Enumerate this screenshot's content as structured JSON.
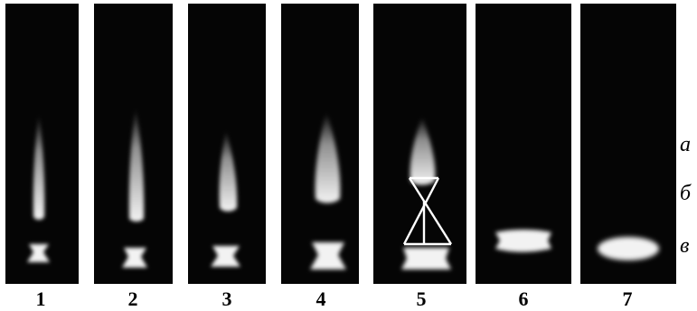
{
  "panels": [
    {
      "label": "1"
    },
    {
      "label": "2"
    },
    {
      "label": "3"
    },
    {
      "label": "4"
    },
    {
      "label": "5"
    },
    {
      "label": "6"
    },
    {
      "label": "7"
    }
  ],
  "zones": [
    {
      "label": "а"
    },
    {
      "label": "б"
    },
    {
      "label": "в"
    }
  ],
  "colors": {
    "panel_background": "#050505",
    "glow": "#ffffff",
    "page_background": "#ffffff",
    "label_text": "#000000"
  }
}
